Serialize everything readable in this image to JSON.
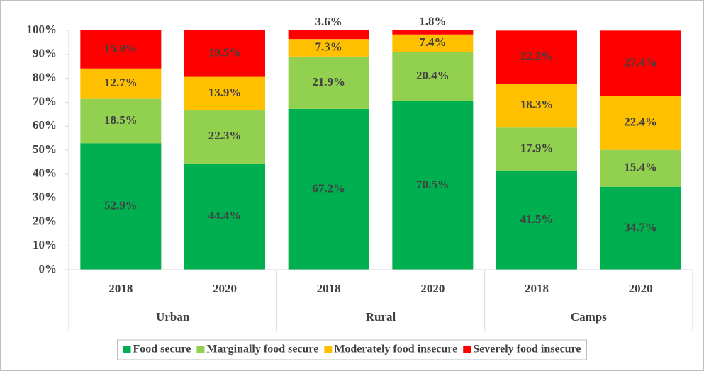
{
  "chart_data": {
    "type": "bar",
    "stacked": true,
    "categories": [
      "2018",
      "2020",
      "2018",
      "2020",
      "2018",
      "2020"
    ],
    "groups": [
      "Urban",
      "Rural",
      "Camps"
    ],
    "series": [
      {
        "name": "Food secure",
        "color": "#00b050",
        "values": [
          52.9,
          44.4,
          67.2,
          70.5,
          41.5,
          34.7
        ],
        "value_labels": [
          "52.9%",
          "44.4%",
          "67.2%",
          "70.5%",
          "41.5%",
          "34.7%"
        ]
      },
      {
        "name": "Marginally food secure",
        "color": "#92d050",
        "values": [
          18.5,
          22.3,
          21.9,
          20.4,
          17.9,
          15.4
        ],
        "value_labels": [
          "18.5%",
          "22.3%",
          "21.9%",
          "20.4%",
          "17.9%",
          "15.4%"
        ]
      },
      {
        "name": "Moderately food insecure",
        "color": "#ffc000",
        "values": [
          12.7,
          13.9,
          7.3,
          7.4,
          18.3,
          22.4
        ],
        "value_labels": [
          "12.7%",
          "13.9%",
          "7.3%",
          "7.4%",
          "18.3%",
          "22.4%"
        ]
      },
      {
        "name": "Severely food insecure",
        "color": "#ff0000",
        "values": [
          15.9,
          19.5,
          3.6,
          1.8,
          22.2,
          27.4
        ],
        "value_labels": [
          "15.9%",
          "19.5%",
          "3.6%",
          "1.8%",
          "22.2%",
          "27.4%"
        ]
      }
    ],
    "ylim": [
      0,
      100
    ],
    "yticks": [
      {
        "value": 0,
        "label": "0%"
      },
      {
        "value": 10,
        "label": "10%"
      },
      {
        "value": 20,
        "label": "20%"
      },
      {
        "value": 30,
        "label": "30%"
      },
      {
        "value": 40,
        "label": "40%"
      },
      {
        "value": 50,
        "label": "50%"
      },
      {
        "value": 60,
        "label": "60%"
      },
      {
        "value": 70,
        "label": "70%"
      },
      {
        "value": 80,
        "label": "80%"
      },
      {
        "value": 90,
        "label": "90%"
      },
      {
        "value": 100,
        "label": "100%"
      }
    ],
    "grid": false,
    "legend": "bottom"
  }
}
